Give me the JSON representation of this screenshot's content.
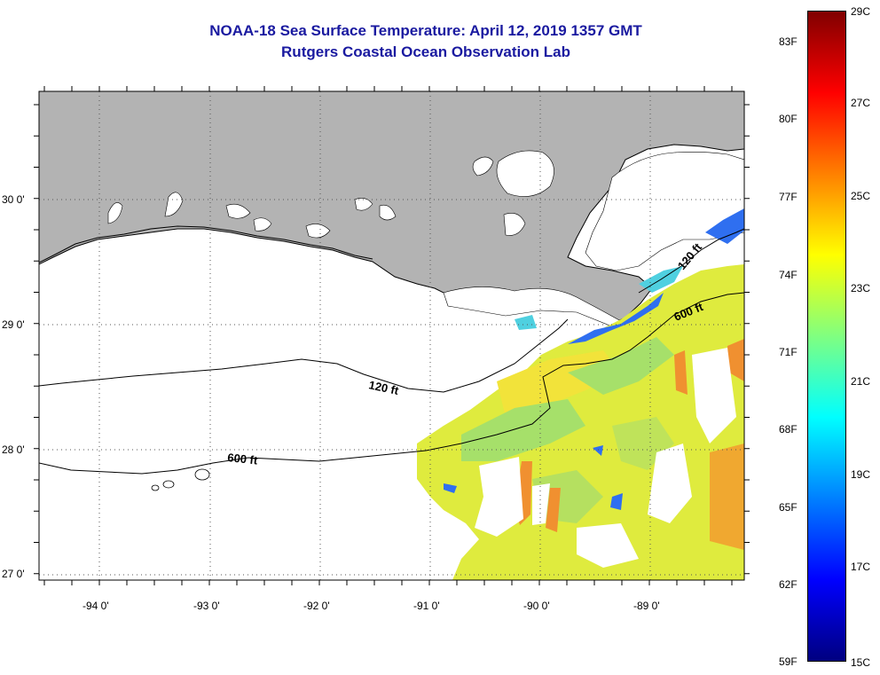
{
  "header": {
    "title_line1": "NOAA-18 Sea Surface Temperature:  April 12, 2019 1357 GMT",
    "title_line2": "Rutgers Coastal Ocean Observation Lab"
  },
  "map": {
    "lat_labels": [
      "30 0'",
      "29 0'",
      "28 0'",
      "27 0'"
    ],
    "lon_labels": [
      "-94 0'",
      "-93 0'",
      "-92 0'",
      "-91 0'",
      "-90 0'",
      "-89 0'"
    ],
    "contours": [
      {
        "label": "120 ft"
      },
      {
        "label": "600 ft"
      },
      {
        "label": "120 ft"
      },
      {
        "label": "600 ft"
      }
    ],
    "colors": {
      "land": "#b3b3b3",
      "background": "#ffffff",
      "title": "#1a1aa0"
    }
  },
  "colorbar": {
    "fahrenheit_labels": [
      "83F",
      "80F",
      "77F",
      "74F",
      "71F",
      "68F",
      "65F",
      "62F",
      "59F"
    ],
    "celsius_labels": [
      "29C",
      "27C",
      "25C",
      "23C",
      "21C",
      "19C",
      "17C",
      "15C"
    ],
    "range_celsius": [
      15,
      29
    ],
    "gradient": [
      "#000080",
      "#0000ff",
      "#0080ff",
      "#00ffff",
      "#80ff80",
      "#ffff00",
      "#ff8000",
      "#ff0000",
      "#800000"
    ]
  }
}
